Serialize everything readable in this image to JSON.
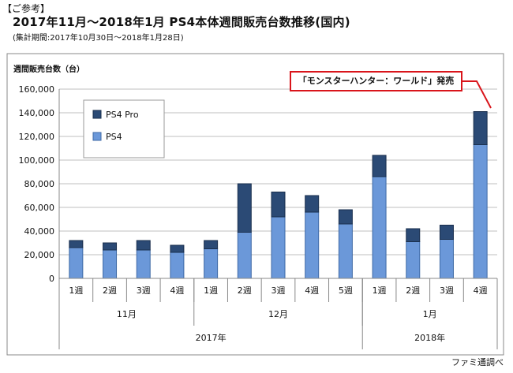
{
  "header": {
    "reference": "【ご参考】",
    "title": "2017年11月～2018年1月 PS4本体週間販売台数推移(国内)",
    "subtitle": "(集計期間:2017年10月30日～2018年1月28日)"
  },
  "source": "ファミ通調べ",
  "annotation": "「モンスターハンター：ワールド」発売",
  "colors": {
    "ps4": "#6b98d9",
    "ps4_pro": "#2b4a75",
    "callout": "#d9151b"
  },
  "chart_data": {
    "type": "bar",
    "stacked": true,
    "ylabel": "週間販売台数（台）",
    "ylim": [
      0,
      160000
    ],
    "ytick_step": 20000,
    "ytick_labels": [
      "0",
      "20,000",
      "40,000",
      "60,000",
      "80,000",
      "100,000",
      "120,000",
      "140,000",
      "160,000"
    ],
    "grid": true,
    "legend_position": "top-left",
    "categories": [
      "1週",
      "2週",
      "3週",
      "4週",
      "1週",
      "2週",
      "3週",
      "4週",
      "5週",
      "1週",
      "2週",
      "3週",
      "4週"
    ],
    "month_groups": [
      {
        "label": "11月",
        "count": 4
      },
      {
        "label": "12月",
        "count": 5
      },
      {
        "label": "1月",
        "count": 4
      }
    ],
    "year_groups": [
      {
        "label": "2017年",
        "count": 9
      },
      {
        "label": "2018年",
        "count": 4
      }
    ],
    "series": [
      {
        "name": "PS4",
        "values": [
          26000,
          24000,
          24000,
          22000,
          25000,
          39000,
          52000,
          56000,
          46000,
          86000,
          31000,
          33000,
          113000
        ]
      },
      {
        "name": "PS4 Pro",
        "values": [
          6000,
          6000,
          8000,
          6000,
          7000,
          41000,
          21000,
          14000,
          12000,
          18000,
          11000,
          12000,
          28000
        ]
      }
    ]
  }
}
